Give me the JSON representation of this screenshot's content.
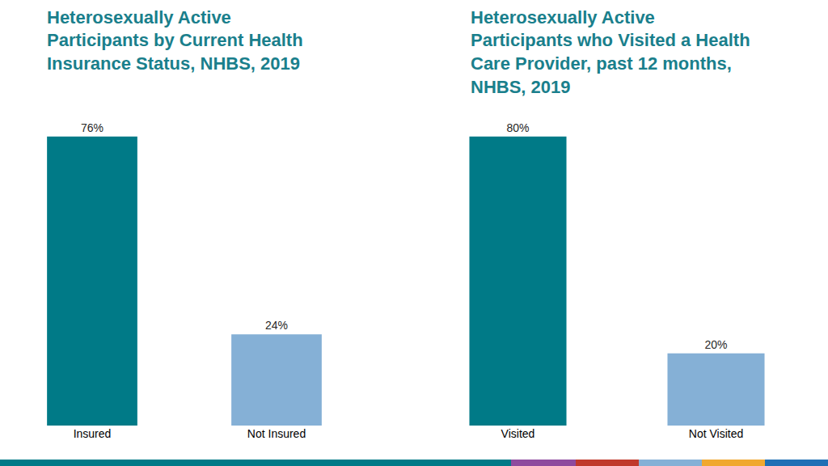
{
  "chart_data": [
    {
      "type": "bar",
      "title": "Heterosexually Active Participants by Current Health Insurance Status, NHBS, 2019",
      "categories": [
        "Insured",
        "Not Insured"
      ],
      "values": [
        76,
        24
      ],
      "value_labels": [
        "76%",
        "24%"
      ],
      "colors": [
        "#007a87",
        "#85b0d6"
      ],
      "data_labels": true,
      "tick_labels": "x"
    },
    {
      "type": "bar",
      "title": "Heterosexually Active Participants who Visited a Health Care Provider, past 12 months, NHBS, 2019",
      "categories": [
        "Visited",
        "Not Visited"
      ],
      "values": [
        80,
        20
      ],
      "value_labels": [
        "80%",
        "20%"
      ],
      "colors": [
        "#007a87",
        "#85b0d6"
      ],
      "data_labels": true,
      "tick_labels": "x"
    }
  ]
}
